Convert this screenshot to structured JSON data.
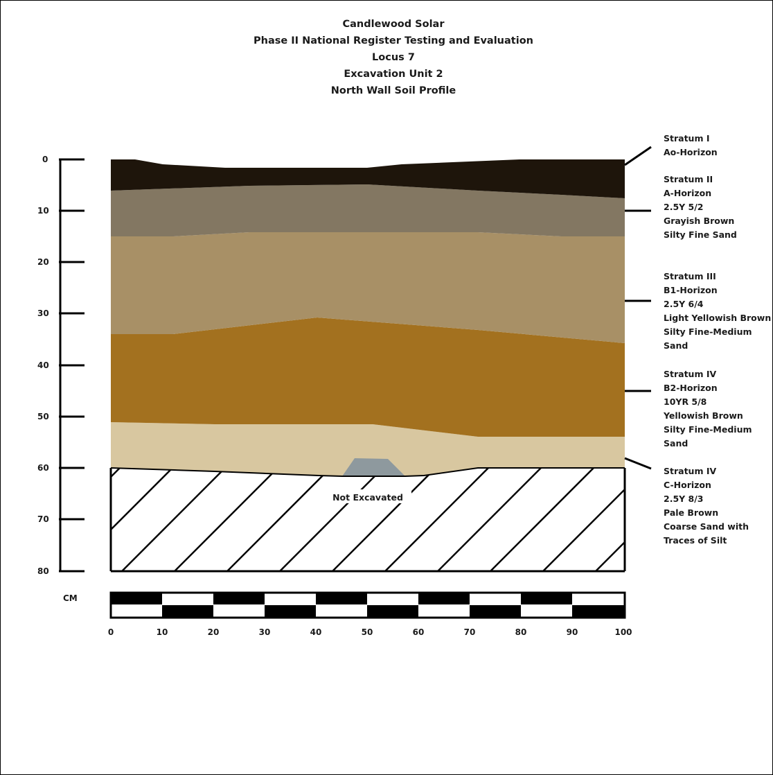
{
  "title_lines": [
    "Candlewood Solar",
    "Phase II National Register Testing and Evaluation",
    "Locus 7",
    "Excavation Unit 2",
    "North Wall Soil Profile"
  ],
  "depth_scale": {
    "ticks": [
      "0",
      "10",
      "20",
      "30",
      "40",
      "50",
      "60",
      "70",
      "80"
    ]
  },
  "horizontal_scale": {
    "unit_label": "CM",
    "ticks": [
      "0",
      "10",
      "20",
      "30",
      "40",
      "50",
      "60",
      "70",
      "80",
      "90",
      "100"
    ]
  },
  "not_excavated_label": "Not Excavated",
  "strata": [
    {
      "lines": [
        "Stratum I",
        "Ao-Horizon"
      ],
      "color": "#1e150b"
    },
    {
      "lines": [
        "Stratum II",
        "A-Horizon",
        "2.5Y 5/2",
        "Grayish Brown",
        "Silty Fine Sand"
      ],
      "color": "#837762"
    },
    {
      "lines": [
        "Stratum III",
        "B1-Horizon",
        "2.5Y 6/4",
        "Light Yellowish Brown",
        "Silty Fine-Medium",
        "Sand"
      ],
      "color": "#a89066"
    },
    {
      "lines": [
        "Stratum IV",
        "B2-Horizon",
        "10YR 5/8",
        "Yellowish Brown",
        "Silty Fine-Medium",
        "Sand"
      ],
      "color": "#a3711f"
    },
    {
      "lines": [
        "Stratum IV",
        "C-Horizon",
        "2.5Y 8/3",
        "Pale Brown",
        "Coarse Sand with",
        "Traces of Silt"
      ],
      "color": "#d8c7a0"
    }
  ],
  "rock_color": "#8e999e"
}
